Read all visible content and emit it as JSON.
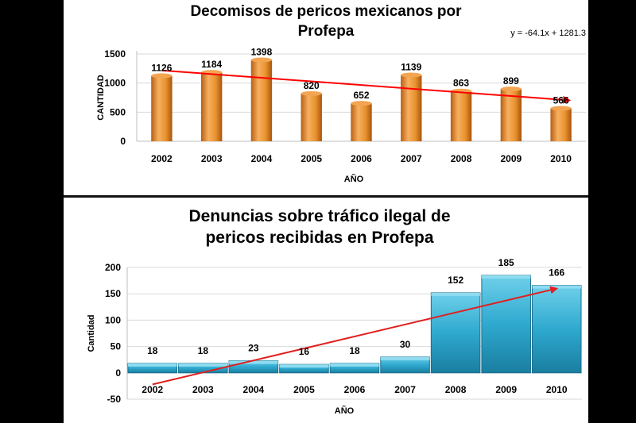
{
  "chart_data": [
    {
      "type": "bar",
      "title_lines": [
        "Decomisos de pericos mexicanos por",
        "Profepa"
      ],
      "trendline_equation": "y = -64.1x + 1281.3",
      "xlabel": "AÑO",
      "ylabel": "CANTIDAD",
      "categories": [
        "2002",
        "2003",
        "2004",
        "2005",
        "2006",
        "2007",
        "2008",
        "2009",
        "2010"
      ],
      "values": [
        1126,
        1184,
        1398,
        820,
        652,
        1139,
        863,
        899,
        566
      ],
      "ylim": [
        0,
        1500
      ],
      "yticks": [
        "0",
        "500",
        "1000",
        "1500"
      ],
      "bar_color": "#e8922e",
      "trend_color": "#ff0000",
      "trend": {
        "slope": -64.1,
        "intercept": 1281.3
      }
    },
    {
      "type": "bar",
      "title_lines": [
        "Denuncias sobre tráfico ilegal de",
        "pericos recibidas en Profepa"
      ],
      "xlabel": "AÑO",
      "ylabel": "Cantidad",
      "categories": [
        "2002",
        "2003",
        "2004",
        "2005",
        "2006",
        "2007",
        "2008",
        "2009",
        "2010"
      ],
      "values": [
        18,
        18,
        23,
        16,
        18,
        30,
        152,
        185,
        166
      ],
      "ylim": [
        -50,
        200
      ],
      "yticks": [
        "-50",
        "0",
        "50",
        "100",
        "150",
        "200"
      ],
      "bar_color": "#2fa9cf",
      "trend_color": "#e02020",
      "trend_endpoints": [
        {
          "x": "2002",
          "y": -22
        },
        {
          "x": "2010",
          "y": 160
        }
      ]
    }
  ]
}
